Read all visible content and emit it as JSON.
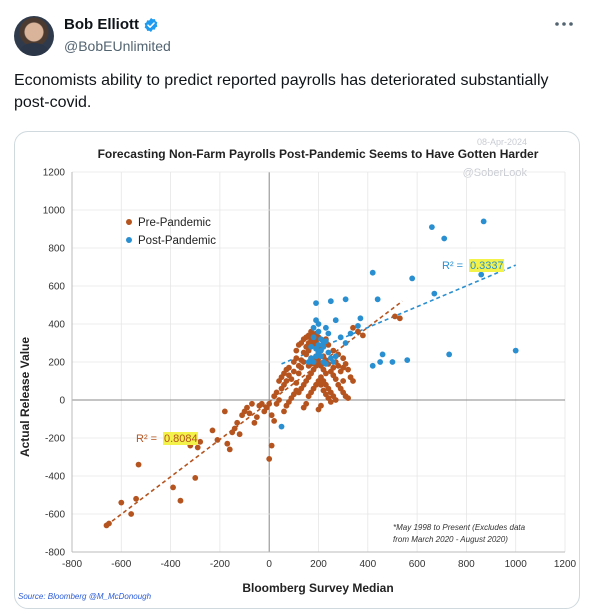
{
  "author": {
    "name": "Bob Elliott",
    "handle": "@BobEUnlimited",
    "verified": true,
    "avatar_icon": "profile-photo"
  },
  "tweet": {
    "text": "Economists ability to predict reported payrolls has deteriorated substantially post-covid."
  },
  "chart_data": {
    "type": "scatter",
    "title": "Forecasting Non-Farm Payrolls Post-Pandemic Seems to Have Gotten Harder",
    "date_stamp": "08-Apr-2024",
    "watermark": "@SoberLook",
    "xlabel": "Bloomberg Survey Median",
    "ylabel": "Actual Release Value",
    "xlim": [
      -800,
      1200
    ],
    "ylim": [
      -800,
      1200
    ],
    "xticks": [
      -800,
      -600,
      -400,
      -200,
      0,
      200,
      400,
      600,
      800,
      1000,
      1200
    ],
    "yticks": [
      -800,
      -600,
      -400,
      -200,
      0,
      200,
      400,
      600,
      800,
      1000,
      1200
    ],
    "grid": true,
    "legend_position": "top-left",
    "colors": {
      "pre": "#b5541f",
      "post": "#2a8fd0",
      "highlight": "#f2f24a"
    },
    "series": [
      {
        "name": "Pre-Pandemic",
        "r2_prefix": "R² =",
        "r2": "0.8084",
        "trend": [
          [
            -660,
            -660
          ],
          [
            540,
            520
          ]
        ],
        "points": [
          [
            -660,
            -660
          ],
          [
            -650,
            -650
          ],
          [
            -600,
            -540
          ],
          [
            -560,
            -600
          ],
          [
            -540,
            -520
          ],
          [
            -530,
            -340
          ],
          [
            -390,
            -460
          ],
          [
            -360,
            -530
          ],
          [
            -300,
            -410
          ],
          [
            -340,
            -210
          ],
          [
            -320,
            -240
          ],
          [
            -290,
            -250
          ],
          [
            -280,
            -220
          ],
          [
            -230,
            -160
          ],
          [
            -210,
            -210
          ],
          [
            -180,
            -60
          ],
          [
            -170,
            -230
          ],
          [
            -160,
            -260
          ],
          [
            -150,
            -170
          ],
          [
            -140,
            -150
          ],
          [
            -130,
            -120
          ],
          [
            -120,
            -180
          ],
          [
            -110,
            -80
          ],
          [
            -100,
            -60
          ],
          [
            -90,
            -40
          ],
          [
            -80,
            -70
          ],
          [
            -70,
            -20
          ],
          [
            -60,
            -120
          ],
          [
            -50,
            -90
          ],
          [
            -40,
            -30
          ],
          [
            -30,
            -20
          ],
          [
            -20,
            -60
          ],
          [
            -10,
            -40
          ],
          [
            0,
            -20
          ],
          [
            10,
            -80
          ],
          [
            20,
            -110
          ],
          [
            30,
            -20
          ],
          [
            40,
            0
          ],
          [
            30,
            40
          ],
          [
            10,
            -240
          ],
          [
            0,
            -310
          ],
          [
            50,
            60
          ],
          [
            60,
            80
          ],
          [
            70,
            100
          ],
          [
            80,
            130
          ],
          [
            90,
            110
          ],
          [
            100,
            150
          ],
          [
            110,
            90
          ],
          [
            120,
            140
          ],
          [
            130,
            170
          ],
          [
            140,
            200
          ],
          [
            150,
            240
          ],
          [
            160,
            260
          ],
          [
            170,
            220
          ],
          [
            180,
            290
          ],
          [
            190,
            310
          ],
          [
            200,
            250
          ],
          [
            210,
            270
          ],
          [
            220,
            230
          ],
          [
            230,
            210
          ],
          [
            240,
            190
          ],
          [
            250,
            150
          ],
          [
            260,
            130
          ],
          [
            270,
            110
          ],
          [
            280,
            80
          ],
          [
            290,
            60
          ],
          [
            300,
            40
          ],
          [
            310,
            20
          ],
          [
            320,
            10
          ],
          [
            120,
            40
          ],
          [
            130,
            60
          ],
          [
            140,
            80
          ],
          [
            150,
            100
          ],
          [
            160,
            120
          ],
          [
            170,
            140
          ],
          [
            180,
            160
          ],
          [
            190,
            180
          ],
          [
            200,
            200
          ],
          [
            210,
            180
          ],
          [
            220,
            160
          ],
          [
            230,
            140
          ],
          [
            90,
            10
          ],
          [
            100,
            30
          ],
          [
            110,
            50
          ],
          [
            160,
            20
          ],
          [
            170,
            40
          ],
          [
            180,
            60
          ],
          [
            190,
            80
          ],
          [
            200,
            100
          ],
          [
            210,
            120
          ],
          [
            220,
            100
          ],
          [
            230,
            80
          ],
          [
            240,
            60
          ],
          [
            250,
            40
          ],
          [
            260,
            20
          ],
          [
            270,
            0
          ],
          [
            120,
            180
          ],
          [
            130,
            210
          ],
          [
            140,
            250
          ],
          [
            150,
            280
          ],
          [
            160,
            300
          ],
          [
            170,
            320
          ],
          [
            180,
            300
          ],
          [
            190,
            280
          ],
          [
            200,
            260
          ],
          [
            100,
            200
          ],
          [
            110,
            220
          ],
          [
            80,
            170
          ],
          [
            70,
            160
          ],
          [
            60,
            140
          ],
          [
            50,
            120
          ],
          [
            40,
            100
          ],
          [
            210,
            80
          ],
          [
            220,
            50
          ],
          [
            230,
            30
          ],
          [
            240,
            10
          ],
          [
            250,
            -10
          ],
          [
            200,
            -50
          ],
          [
            210,
            -30
          ],
          [
            140,
            -40
          ],
          [
            150,
            -20
          ],
          [
            60,
            -60
          ],
          [
            70,
            -30
          ],
          [
            80,
            -10
          ],
          [
            20,
            20
          ],
          [
            160,
            180
          ],
          [
            170,
            190
          ],
          [
            180,
            210
          ],
          [
            190,
            230
          ],
          [
            200,
            220
          ],
          [
            290,
            150
          ],
          [
            300,
            170
          ],
          [
            310,
            190
          ],
          [
            320,
            160
          ],
          [
            330,
            120
          ],
          [
            340,
            100
          ],
          [
            300,
            100
          ],
          [
            280,
            240
          ],
          [
            260,
            260
          ],
          [
            240,
            290
          ],
          [
            230,
            320
          ],
          [
            160,
            340
          ],
          [
            170,
            360
          ],
          [
            180,
            340
          ],
          [
            190,
            350
          ],
          [
            200,
            330
          ],
          [
            140,
            320
          ],
          [
            150,
            330
          ],
          [
            130,
            300
          ],
          [
            120,
            290
          ],
          [
            110,
            260
          ],
          [
            530,
            430
          ],
          [
            510,
            440
          ],
          [
            340,
            380
          ],
          [
            360,
            360
          ],
          [
            380,
            340
          ],
          [
            300,
            220
          ],
          [
            280,
            180
          ],
          [
            270,
            200
          ],
          [
            260,
            170
          ]
        ]
      },
      {
        "name": "Post-Pandemic",
        "r2_prefix": "R² =",
        "r2": "0.3337",
        "trend": [
          [
            50,
            190
          ],
          [
            1000,
            710
          ]
        ],
        "points": [
          [
            660,
            910
          ],
          [
            710,
            850
          ],
          [
            870,
            940
          ],
          [
            420,
            670
          ],
          [
            580,
            640
          ],
          [
            440,
            530
          ],
          [
            670,
            560
          ],
          [
            860,
            660
          ],
          [
            1000,
            260
          ],
          [
            730,
            240
          ],
          [
            310,
            530
          ],
          [
            250,
            520
          ],
          [
            190,
            510
          ],
          [
            370,
            430
          ],
          [
            360,
            390
          ],
          [
            330,
            350
          ],
          [
            290,
            330
          ],
          [
            310,
            300
          ],
          [
            230,
            310
          ],
          [
            240,
            350
          ],
          [
            200,
            360
          ],
          [
            180,
            330
          ],
          [
            210,
            320
          ],
          [
            220,
            300
          ],
          [
            170,
            280
          ],
          [
            190,
            270
          ],
          [
            200,
            250
          ],
          [
            210,
            230
          ],
          [
            220,
            200
          ],
          [
            230,
            190
          ],
          [
            180,
            200
          ],
          [
            170,
            220
          ],
          [
            160,
            200
          ],
          [
            190,
            230
          ],
          [
            200,
            290
          ],
          [
            210,
            260
          ],
          [
            220,
            280
          ],
          [
            240,
            250
          ],
          [
            250,
            220
          ],
          [
            260,
            200
          ],
          [
            270,
            230
          ],
          [
            180,
            380
          ],
          [
            230,
            380
          ],
          [
            200,
            400
          ],
          [
            450,
            200
          ],
          [
            460,
            240
          ],
          [
            500,
            200
          ],
          [
            560,
            210
          ],
          [
            420,
            180
          ],
          [
            270,
            420
          ],
          [
            190,
            420
          ],
          [
            50,
            -140
          ]
        ]
      }
    ],
    "footnote_lines": [
      "*May 1998 to Present (Excludes data",
      "from March 2020 - August 2020)"
    ],
    "source": "Source: Bloomberg @M_McDonough"
  }
}
